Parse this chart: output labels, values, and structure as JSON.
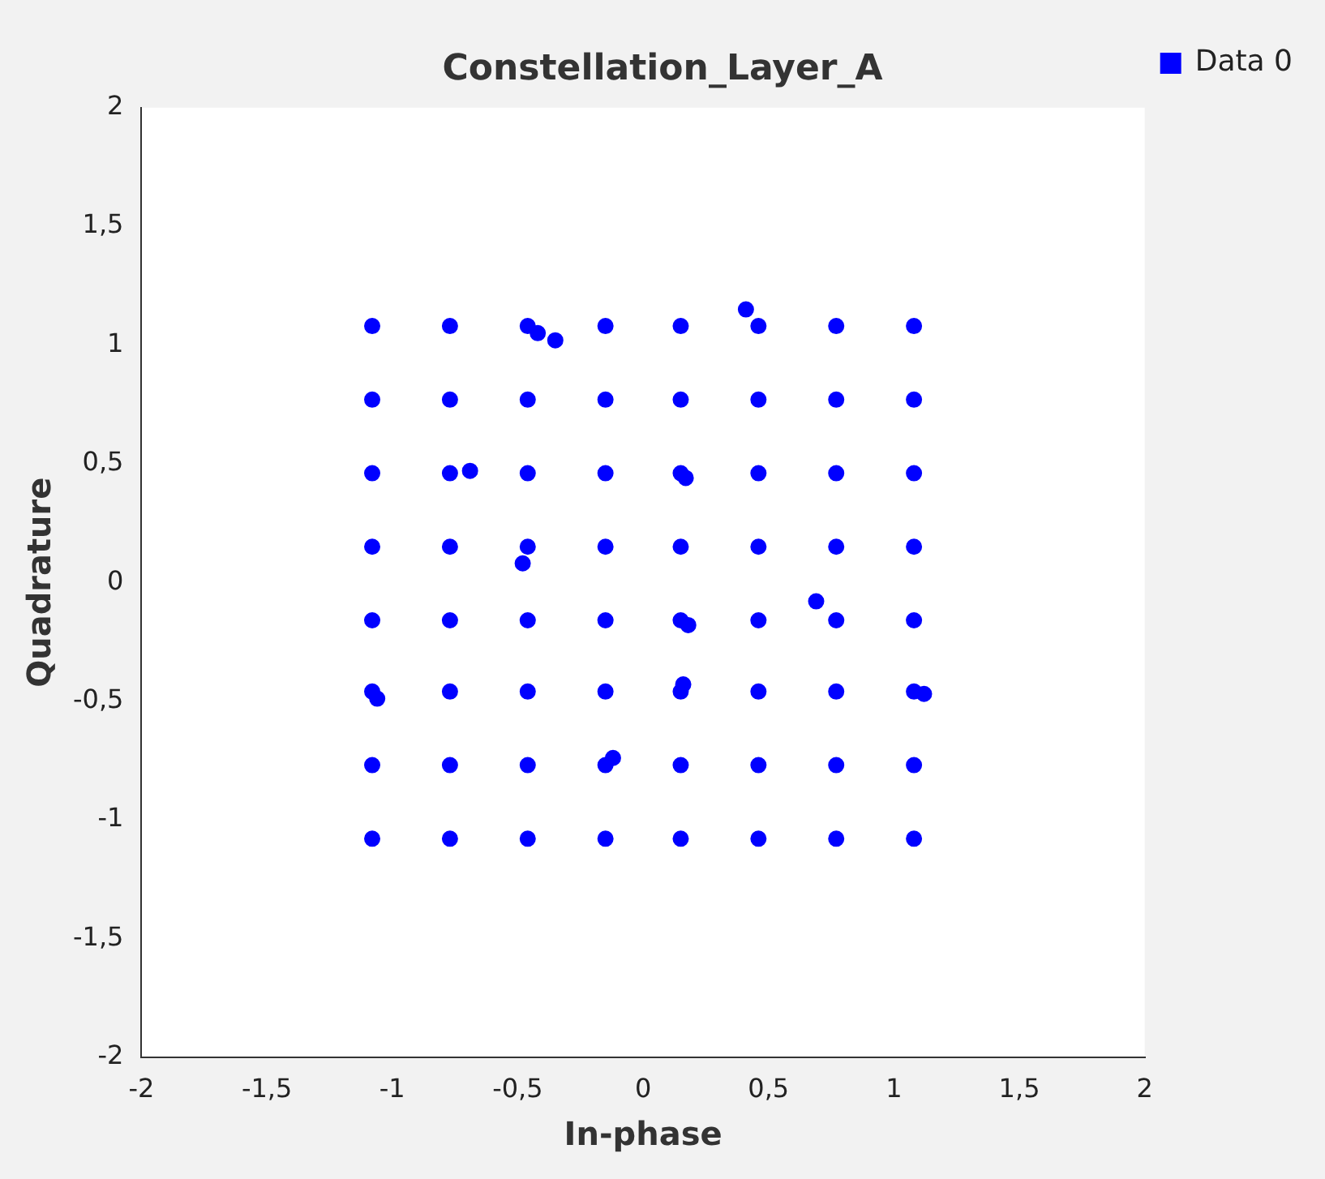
{
  "chart_data": {
    "type": "scatter",
    "title": "Constellation_Layer_A",
    "xlabel": "In-phase",
    "ylabel": "Quadrature",
    "x": [
      -1.08,
      -0.77,
      -0.46,
      -0.15,
      0.15,
      0.46,
      0.77,
      1.08,
      -1.08,
      -0.77,
      -0.46,
      -0.15,
      0.15,
      0.46,
      0.77,
      1.08,
      -1.08,
      -0.77,
      -0.46,
      -0.15,
      0.15,
      0.46,
      0.77,
      1.08,
      -1.08,
      -0.77,
      -0.46,
      -0.15,
      0.15,
      0.46,
      0.77,
      1.08,
      -1.08,
      -0.77,
      -0.46,
      -0.15,
      0.15,
      0.46,
      0.77,
      1.08,
      -1.08,
      -0.77,
      -0.46,
      -0.15,
      0.15,
      0.46,
      0.77,
      1.08,
      -1.08,
      -0.77,
      -0.46,
      -0.15,
      0.15,
      0.46,
      0.77,
      1.08,
      -1.08,
      -0.77,
      -0.46,
      -0.15,
      0.15,
      0.46,
      0.77,
      1.08,
      0.41,
      -0.42,
      -0.35,
      -0.69,
      -0.48,
      0.17,
      0.18,
      0.69,
      0.16,
      -0.12,
      1.12,
      -1.06
    ],
    "series": [
      {
        "name": "Data 0",
        "color": "#0000ff",
        "values": [
          1.08,
          1.08,
          1.08,
          1.08,
          1.08,
          1.08,
          1.08,
          1.08,
          0.77,
          0.77,
          0.77,
          0.77,
          0.77,
          0.77,
          0.77,
          0.77,
          0.46,
          0.46,
          0.46,
          0.46,
          0.46,
          0.46,
          0.46,
          0.46,
          0.15,
          0.15,
          0.15,
          0.15,
          0.15,
          0.15,
          0.15,
          0.15,
          -0.16,
          -0.16,
          -0.16,
          -0.16,
          -0.16,
          -0.16,
          -0.16,
          -0.16,
          -0.46,
          -0.46,
          -0.46,
          -0.46,
          -0.46,
          -0.46,
          -0.46,
          -0.46,
          -0.77,
          -0.77,
          -0.77,
          -0.77,
          -0.77,
          -0.77,
          -0.77,
          -0.77,
          -1.08,
          -1.08,
          -1.08,
          -1.08,
          -1.08,
          -1.08,
          -1.08,
          -1.08,
          1.15,
          1.05,
          1.02,
          0.47,
          0.08,
          0.44,
          -0.18,
          -0.08,
          -0.43,
          -0.74,
          -0.47,
          -0.49
        ]
      }
    ],
    "xlim": [
      -2,
      2
    ],
    "ylim": [
      -2,
      2
    ],
    "xticks": [
      -2,
      {
        "value": -1.5,
        "label": "-1,5"
      },
      -1,
      {
        "value": -0.5,
        "label": "-0,5"
      },
      0,
      {
        "value": 0.5,
        "label": "0,5"
      },
      1,
      {
        "value": 1.5,
        "label": "1,5"
      },
      2
    ],
    "yticks": [
      -2,
      {
        "value": -1.5,
        "label": "-1,5"
      },
      -1,
      {
        "value": -0.5,
        "label": "-0,5"
      },
      0,
      {
        "value": 0.5,
        "label": "0,5"
      },
      1,
      {
        "value": 1.5,
        "label": "1,5"
      },
      2
    ],
    "grid": false,
    "legend": "top right",
    "marker": "circle"
  }
}
